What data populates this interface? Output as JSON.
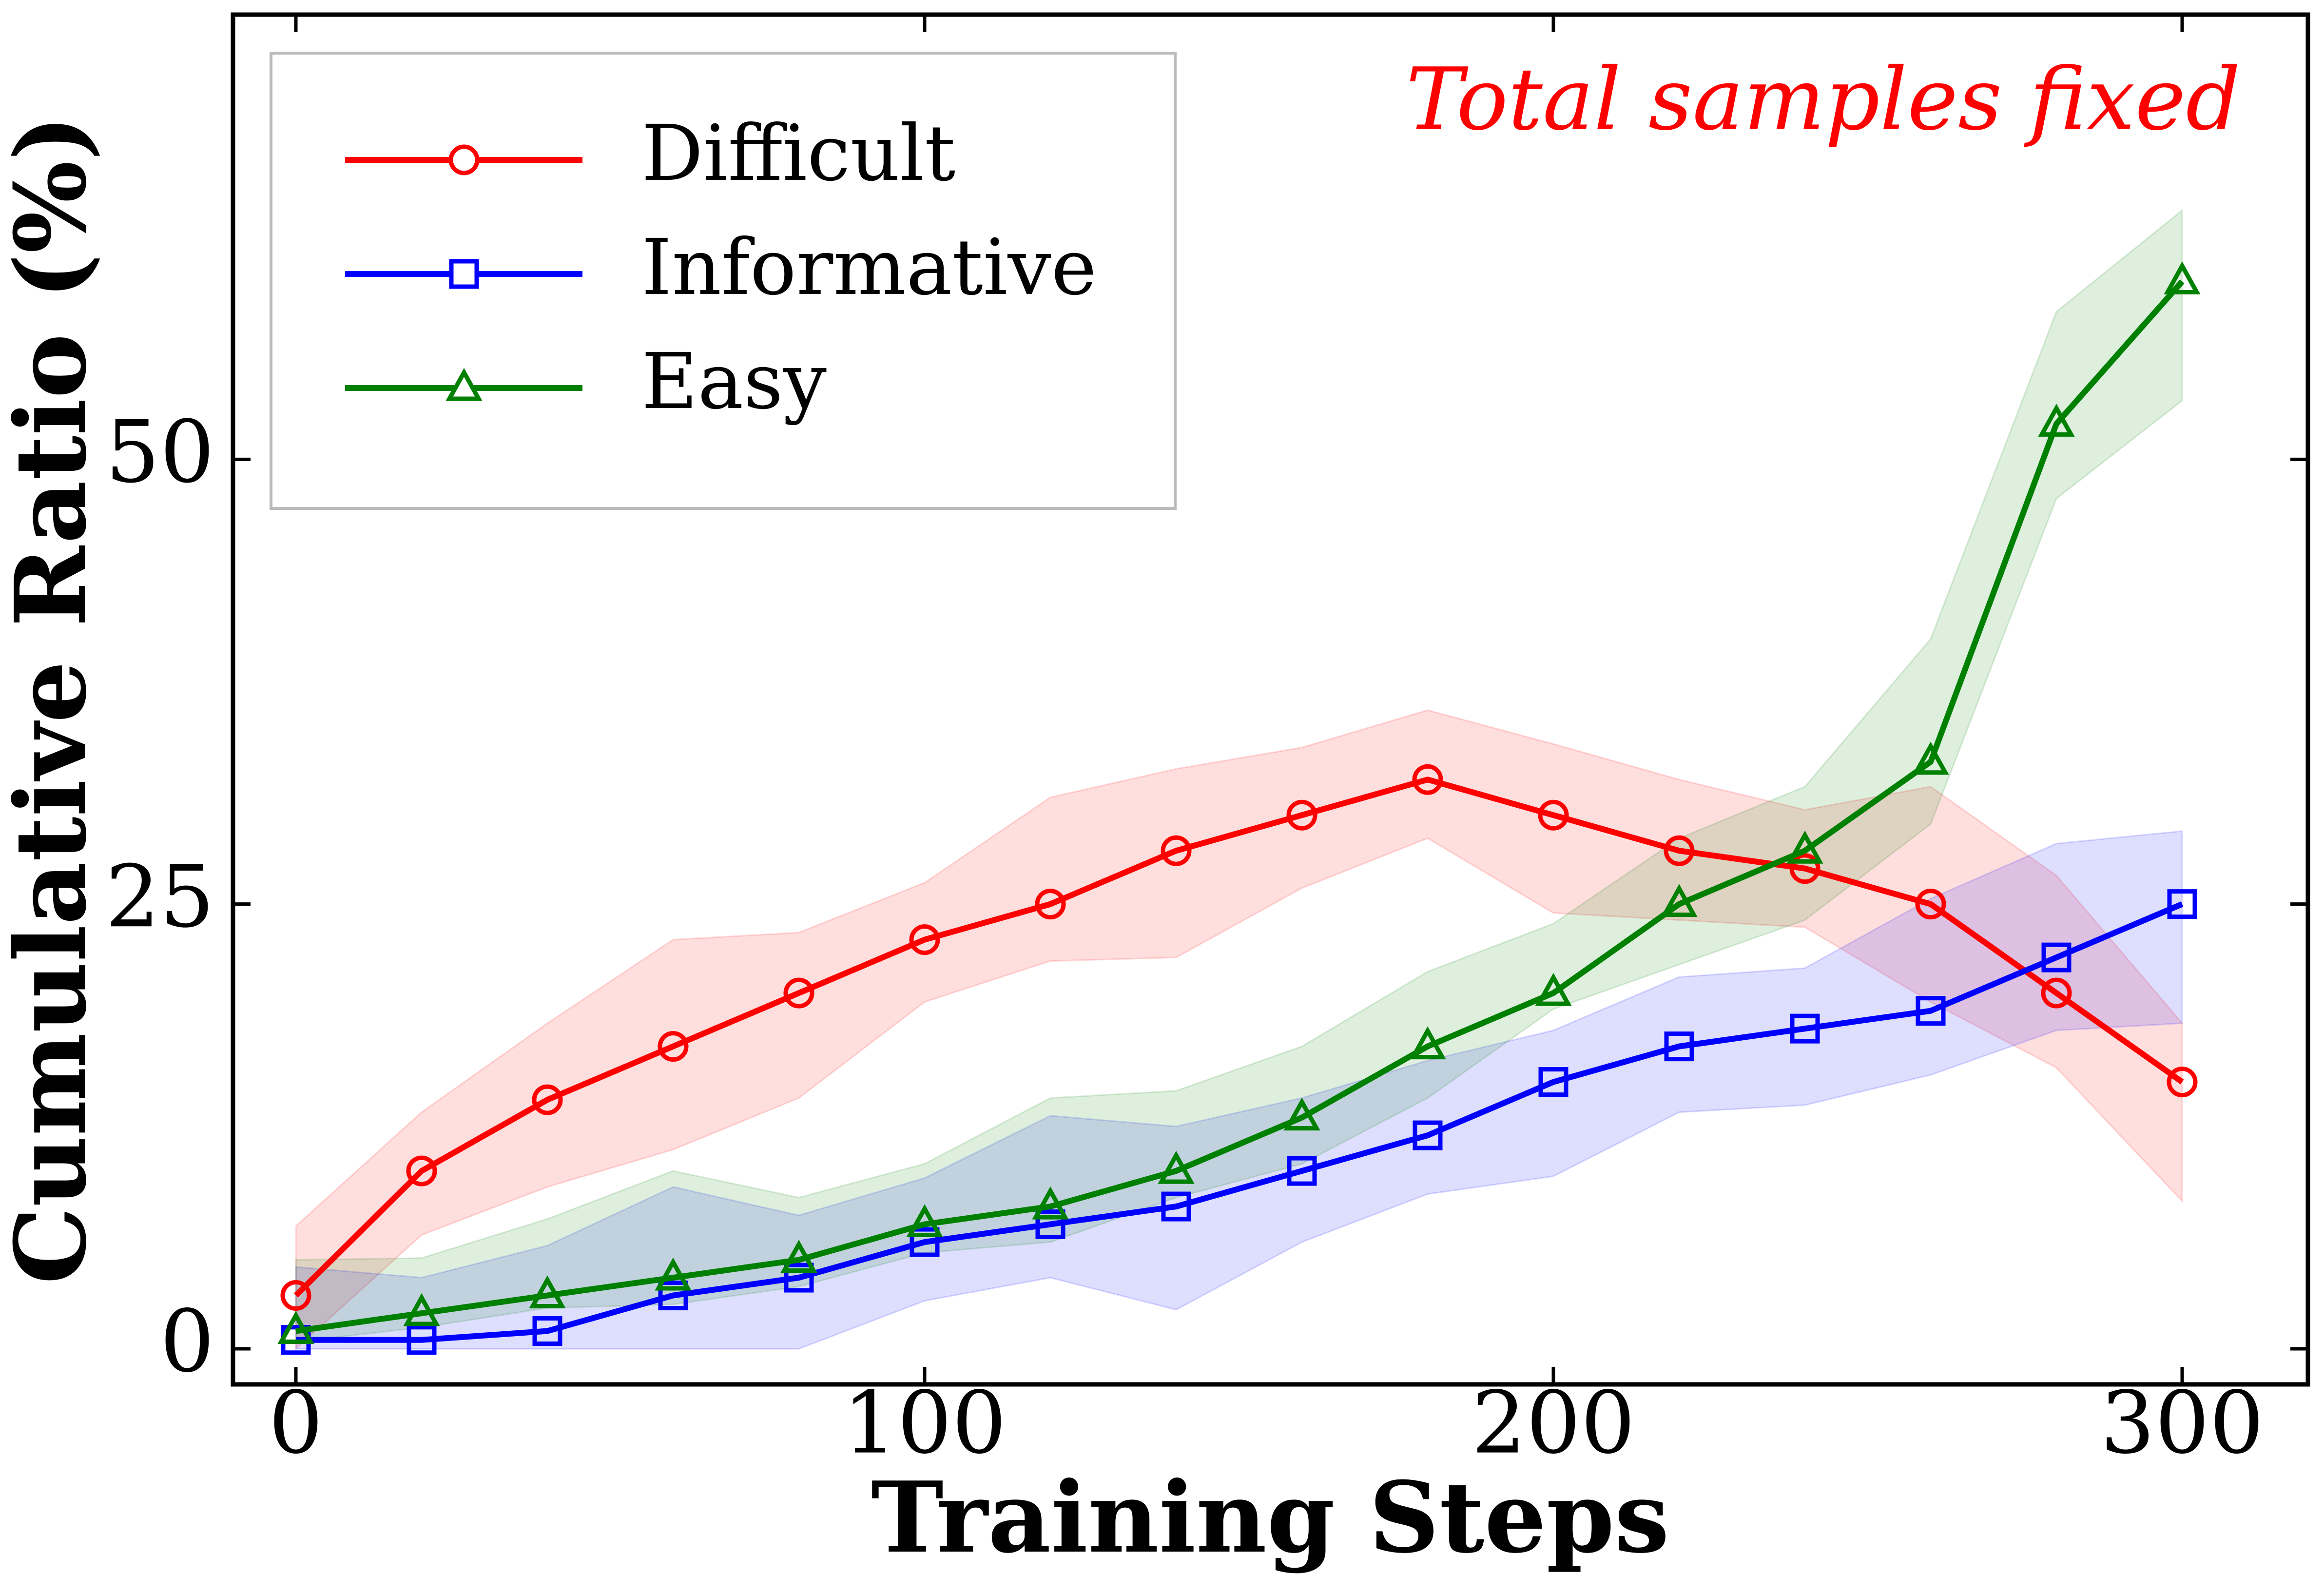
{
  "chart_data": {
    "type": "line",
    "xlabel": "Training Steps",
    "ylabel": "Cumulative Ratio (%)",
    "annotation": "Total samples fixed",
    "x": [
      0,
      20,
      40,
      60,
      80,
      100,
      120,
      140,
      160,
      180,
      200,
      220,
      240,
      260,
      280,
      300
    ],
    "xlim": [
      -10,
      320
    ],
    "xticks": [
      0,
      100,
      200,
      300
    ],
    "ylim": [
      -2,
      75
    ],
    "yticks": [
      0,
      25,
      50
    ],
    "legend": "upper left",
    "series": [
      {
        "name": "Difficult",
        "color": "#ff0000",
        "marker": "circle",
        "values": [
          3,
          10,
          14,
          17,
          20,
          23,
          25,
          28,
          30,
          32,
          30,
          28,
          27,
          25,
          20,
          15
        ],
        "lower": [
          0,
          6.4,
          9.1,
          11.2,
          14.1,
          19.5,
          21.8,
          22,
          25.9,
          28.7,
          24.5,
          24.1,
          23.7,
          19.5,
          15.8,
          8.3
        ],
        "upper": [
          6.9,
          13.3,
          18.3,
          23,
          23.4,
          26.2,
          31,
          32.6,
          33.8,
          35.9,
          34,
          32,
          30.3,
          31.6,
          26.6,
          18.3
        ]
      },
      {
        "name": "Informative",
        "color": "#0000ff",
        "marker": "square",
        "values": [
          0.5,
          0.5,
          1,
          3,
          4,
          6,
          7,
          8,
          10,
          12,
          15,
          17,
          18,
          19,
          22,
          25
        ],
        "lower": [
          0,
          0,
          0,
          0,
          0,
          2.7,
          4,
          2.2,
          6,
          8.7,
          9.7,
          13.3,
          13.7,
          15.4,
          17.9,
          18.3
        ],
        "upper": [
          4.6,
          4,
          5.8,
          9.1,
          7.5,
          9.6,
          13.1,
          12.5,
          14.1,
          16.2,
          17.9,
          20.9,
          21.4,
          25.3,
          28.4,
          29.1
        ]
      },
      {
        "name": "Easy",
        "color": "#008000",
        "marker": "triangle",
        "values": [
          1,
          2,
          3,
          4,
          5,
          7,
          8,
          10,
          13,
          17,
          20,
          25,
          28,
          33,
          52,
          60
        ],
        "lower": [
          0.4,
          1.2,
          2.3,
          2.5,
          3.5,
          5.4,
          6,
          8.5,
          10.4,
          14.1,
          19.1,
          21.6,
          24.1,
          29.5,
          47.8,
          53.3
        ],
        "upper": [
          5,
          5.1,
          7.3,
          10,
          8.5,
          10.4,
          14.1,
          14.5,
          17,
          21.2,
          23.9,
          28.7,
          31.6,
          39.9,
          58.3,
          64
        ]
      }
    ]
  }
}
